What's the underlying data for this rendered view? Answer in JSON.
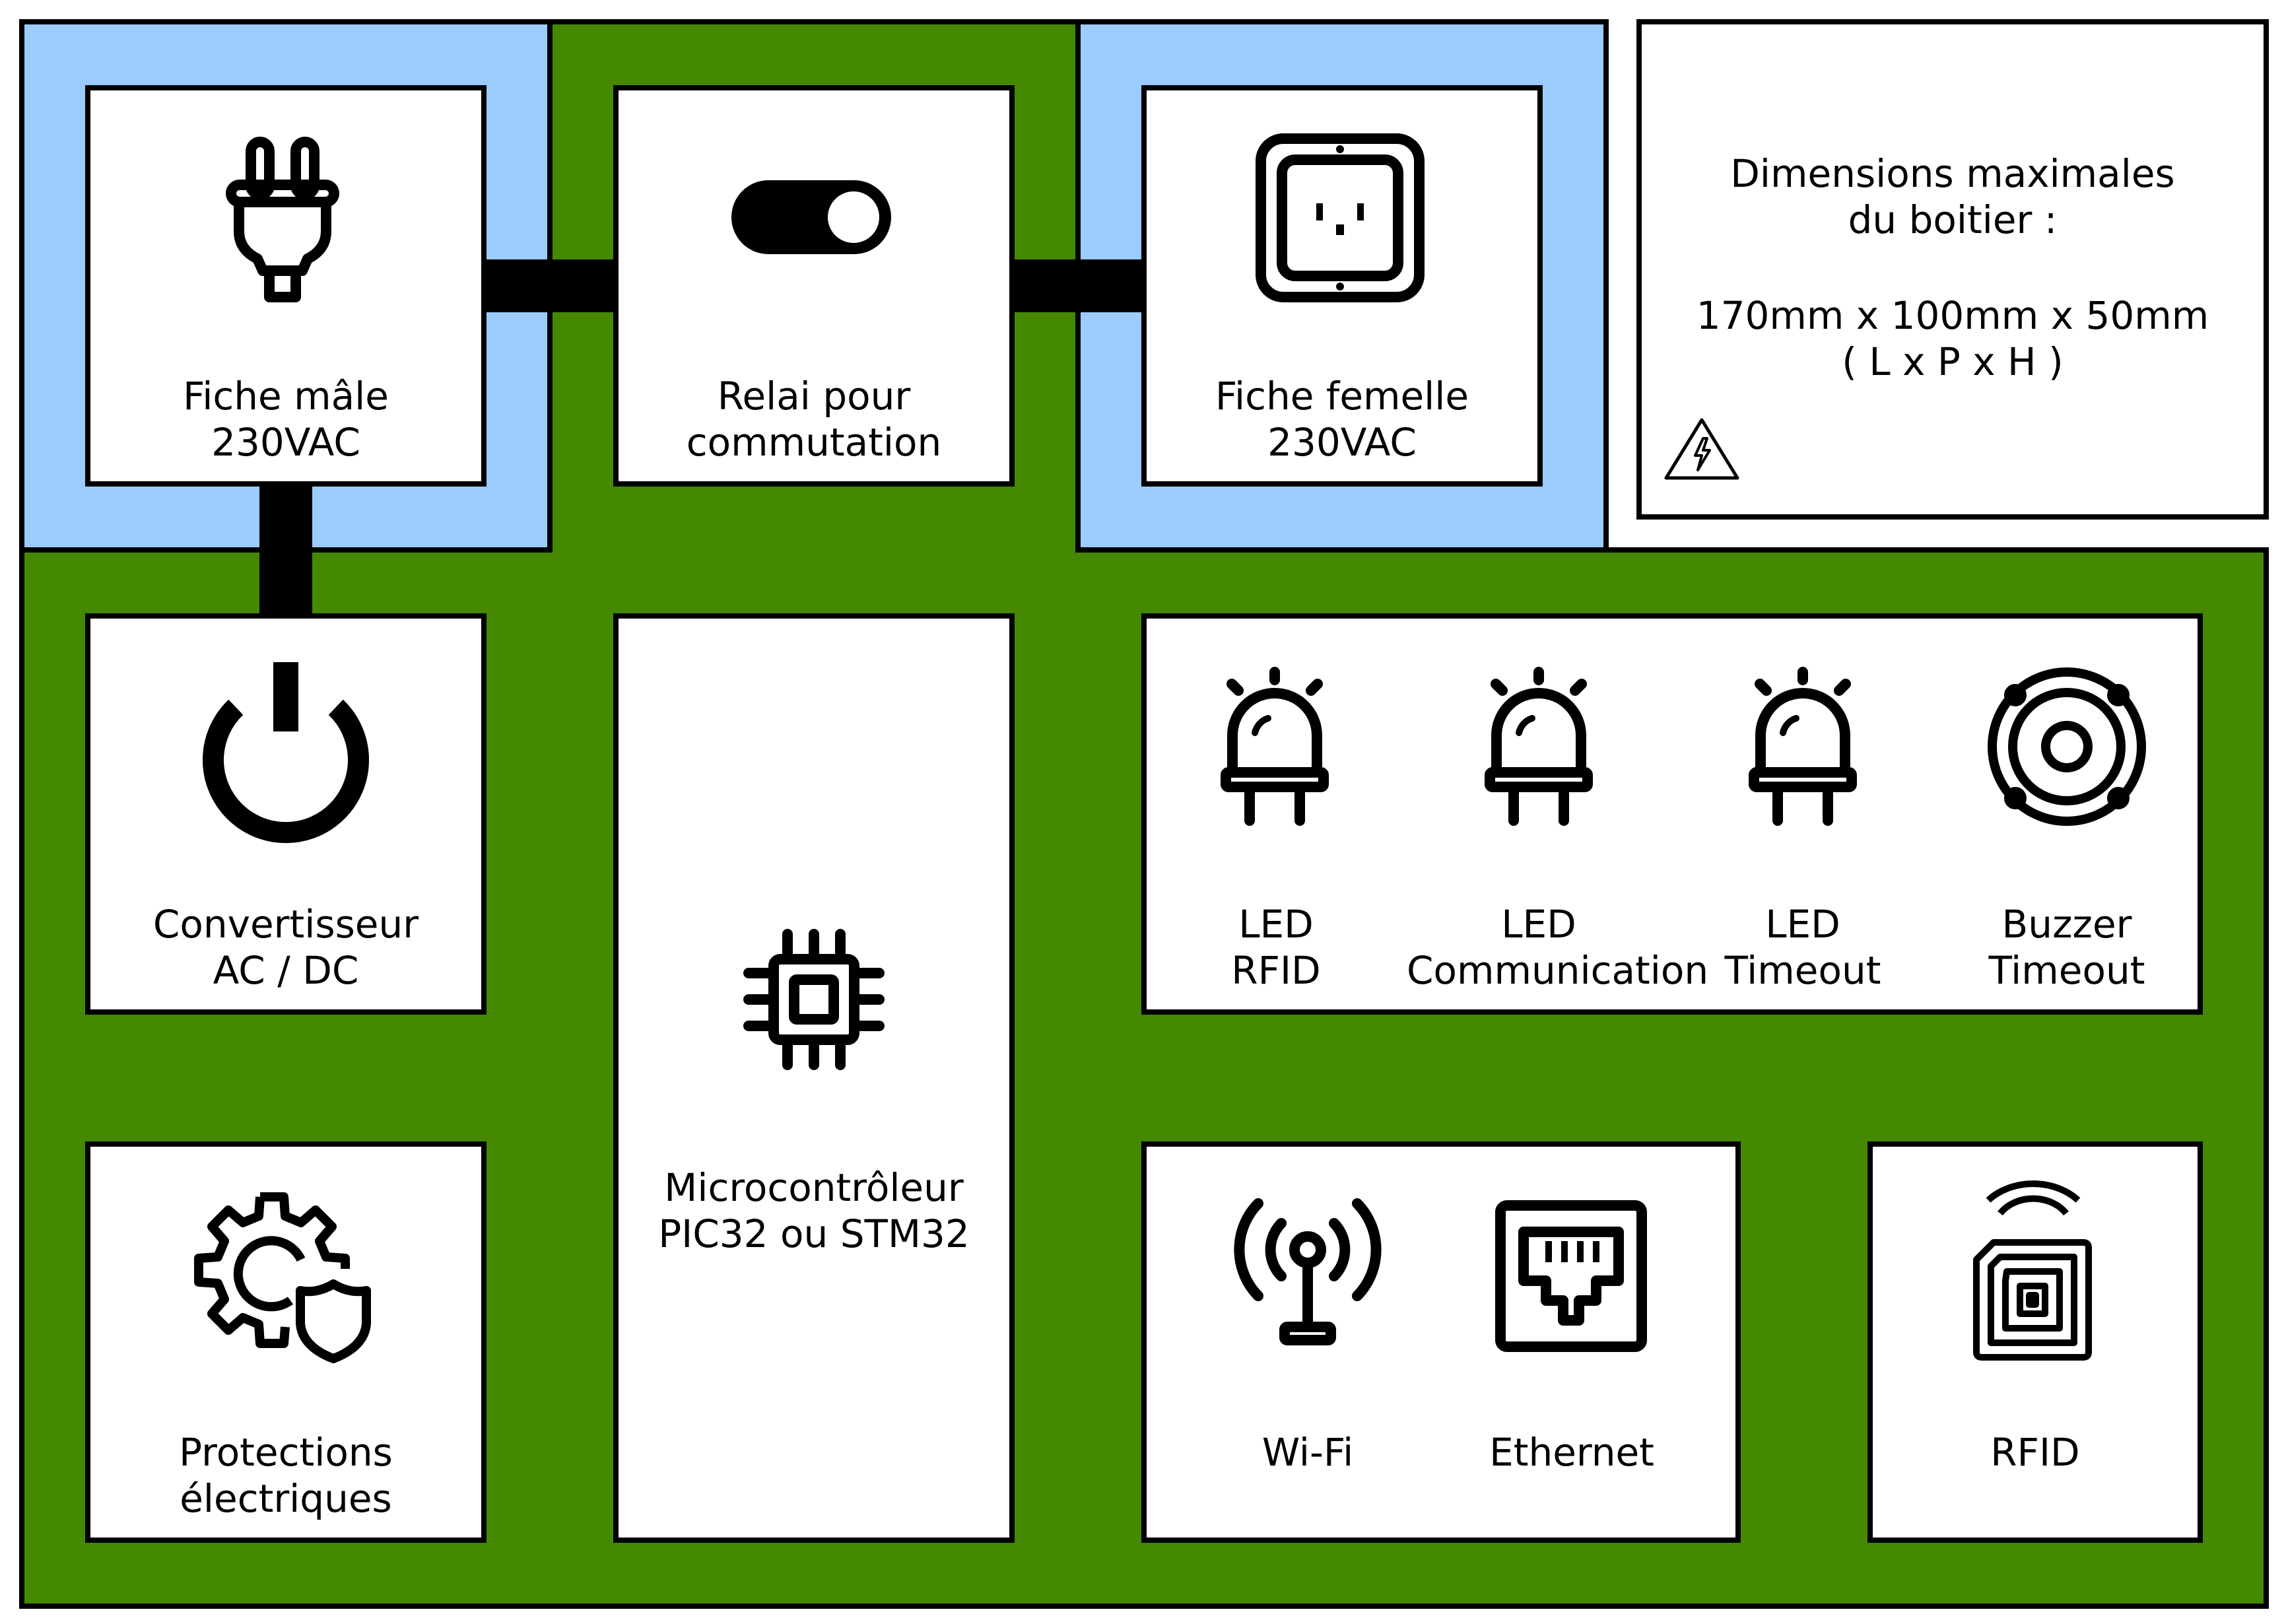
{
  "colors": {
    "board": "#458902",
    "mains_zone": "#9ccbfd",
    "block_fill": "#ffffff",
    "outline": "#000000"
  },
  "blocks": {
    "male_plug": {
      "line1": "Fiche mâle",
      "line2": "230VAC",
      "icon": "plug-icon"
    },
    "relay": {
      "line1": "Relai pour",
      "line2": "commutation",
      "icon": "toggle-switch-icon"
    },
    "female_socket": {
      "line1": "Fiche femelle",
      "line2": "230VAC",
      "icon": "power-socket-icon"
    },
    "converter": {
      "line1": "Convertisseur",
      "line2": "AC / DC",
      "icon": "power-icon"
    },
    "microcontroller": {
      "line1": "Microcontrôleur",
      "line2": "PIC32 ou STM32",
      "icon": "chip-icon"
    },
    "protections": {
      "line1": "Protections",
      "line2": "électriques",
      "icon": "gear-shield-icon"
    },
    "indicators": [
      {
        "line1": "LED",
        "line2": "RFID",
        "icon": "led-icon"
      },
      {
        "line1": "LED",
        "line2": "Communication",
        "icon": "led-icon"
      },
      {
        "line1": "LED",
        "line2": "Timeout",
        "icon": "led-icon"
      },
      {
        "line1": "Buzzer",
        "line2": "Timeout",
        "icon": "speaker-icon"
      }
    ],
    "connectivity": [
      {
        "label": "Wi-Fi",
        "icon": "antenna-icon"
      },
      {
        "label": "Ethernet",
        "icon": "ethernet-port-icon"
      }
    ],
    "rfid": {
      "label": "RFID",
      "icon": "rfid-tag-icon"
    }
  },
  "dimensions_note": {
    "line1": "Dimensions maximales",
    "line2": "du boitier :",
    "line3": "170mm x 100mm x 50mm",
    "line4": "( L x P x H )",
    "icon": "high-voltage-warning-icon"
  }
}
